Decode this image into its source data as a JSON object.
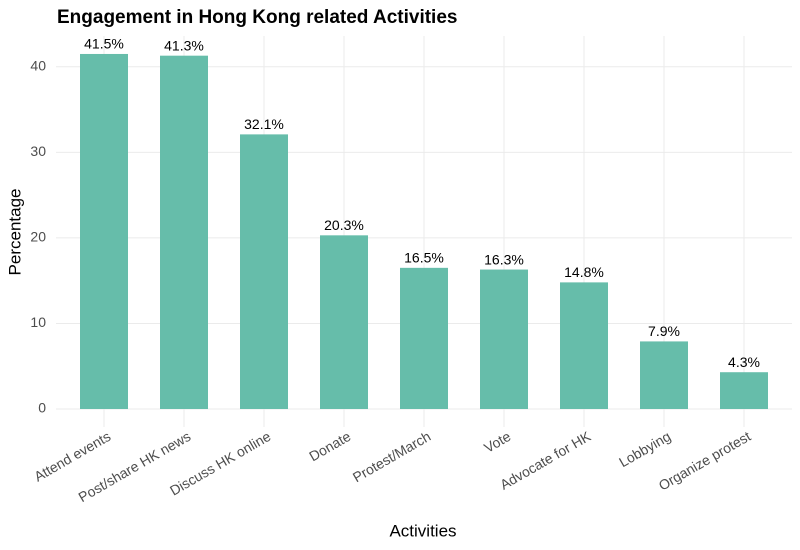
{
  "chart_data": {
    "type": "bar",
    "title": "Engagement in Hong Kong related Activities",
    "x_label": "Activities",
    "y_label": "Percentage",
    "categories": [
      "Attend events",
      "Post/share HK news",
      "Discuss HK online",
      "Donate",
      "Protest/March",
      "Vote",
      "Advocate for HK",
      "Lobbying",
      "Organize protest"
    ],
    "values": [
      41.5,
      41.3,
      32.1,
      20.3,
      16.5,
      16.3,
      14.8,
      7.9,
      4.3
    ],
    "value_labels": [
      "41.5%",
      "41.3%",
      "32.1%",
      "20.3%",
      "16.5%",
      "16.3%",
      "14.8%",
      "7.9%",
      "4.3%"
    ],
    "color": "#66bdaa",
    "ylim": [
      0,
      43.6
    ],
    "yticks": [
      0,
      10,
      20,
      30,
      40
    ],
    "grid": true
  }
}
